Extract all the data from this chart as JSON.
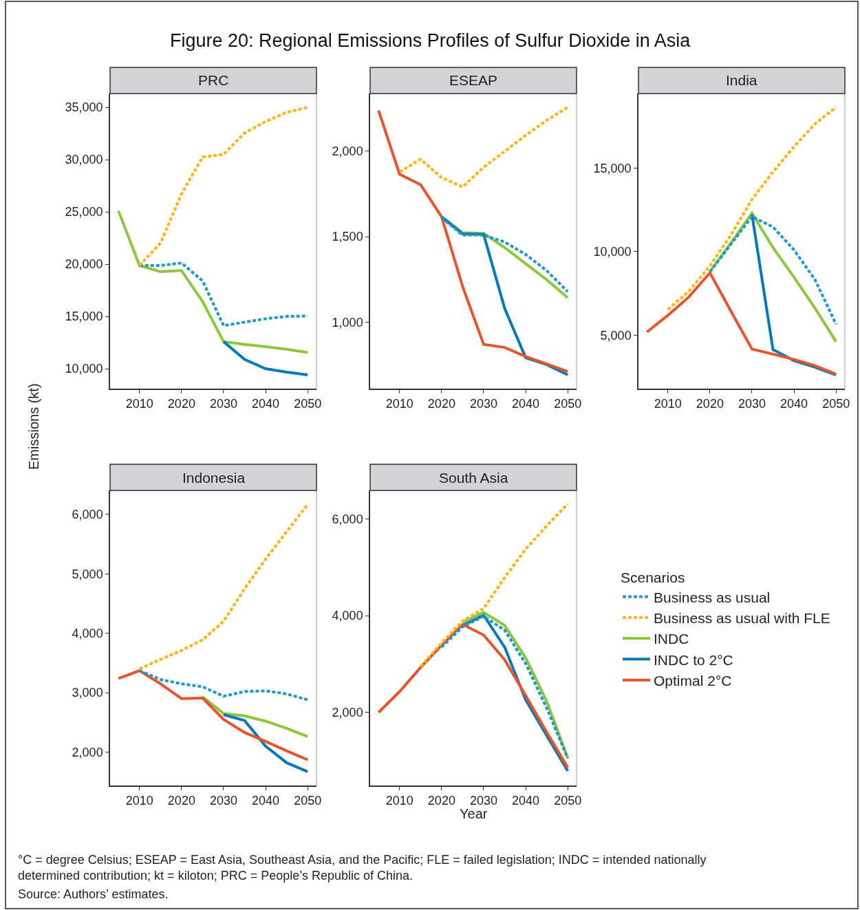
{
  "chart_data": [
    {
      "type": "line",
      "title": "Figure 20: Regional Emissions Profiles of Sulfur Dioxide in Asia",
      "subtitle": "PRC",
      "ylabel": "Emissions (kt)",
      "legend_title": "Scenarios",
      "legend": "right",
      "x": [
        2005,
        2010,
        2015,
        2020,
        2025,
        2030,
        2035,
        2040,
        2045,
        2050
      ],
      "xlim": [
        2003,
        2052.1
      ],
      "xticks": [
        2010,
        2020,
        2030,
        2040,
        2050
      ],
      "ylim": [
        8093,
        36316
      ],
      "yticks": [
        {
          "value": 10000,
          "label": "10,000"
        },
        {
          "value": 15000,
          "label": "15,000"
        },
        {
          "value": 20000,
          "label": "20,000"
        },
        {
          "value": 25000,
          "label": "25,000"
        },
        {
          "value": 30000,
          "label": "30,000"
        },
        {
          "value": 35000,
          "label": "35,000"
        }
      ],
      "grid": false,
      "series": [
        {
          "name": "Business as usual",
          "color": "#2196cf",
          "line_style": "dotted",
          "values": [
            null,
            19870,
            19870,
            20110,
            18400,
            14120,
            14450,
            14780,
            15000,
            15040
          ]
        },
        {
          "name": "Business as usual with FLE",
          "color": "#fdb515",
          "line_style": "dotted",
          "values": [
            null,
            19870,
            22020,
            26730,
            30240,
            30500,
            32540,
            33640,
            34520,
            35000
          ]
        },
        {
          "name": "INDC",
          "color": "#8dc63f",
          "line_style": "solid",
          "values": [
            25090,
            19870,
            19280,
            19390,
            16430,
            12590,
            12320,
            12100,
            11860,
            11540
          ]
        },
        {
          "name": "INDC to 2°C",
          "color": "#0079b8",
          "line_style": "solid",
          "values": [
            null,
            null,
            null,
            null,
            null,
            12590,
            10880,
            10000,
            9670,
            9410
          ]
        }
      ]
    },
    {
      "type": "line",
      "subtitle": "ESEAP",
      "x": [
        2005,
        2010,
        2015,
        2020,
        2025,
        2030,
        2035,
        2040,
        2045,
        2050
      ],
      "xlim": [
        2003,
        2052.1
      ],
      "xticks": [
        2010,
        2020,
        2030,
        2040,
        2050
      ],
      "ylim": [
        614,
        2334
      ],
      "yticks": [
        {
          "value": 1000,
          "label": "1,000"
        },
        {
          "value": 1500,
          "label": "1,500"
        },
        {
          "value": 2000,
          "label": "2,000"
        }
      ],
      "grid": false,
      "series": [
        {
          "name": "Business as usual",
          "color": "#2196cf",
          "line_style": "dotted",
          "values": [
            null,
            null,
            null,
            1610,
            1509,
            1509,
            1469,
            1396,
            1302,
            1179
          ]
        },
        {
          "name": "Business as usual with FLE",
          "color": "#fdb515",
          "line_style": "dotted",
          "values": [
            null,
            1877,
            1951,
            1844,
            1790,
            1904,
            1997,
            2091,
            2178,
            2254
          ]
        },
        {
          "name": "INDC",
          "color": "#8dc63f",
          "line_style": "solid",
          "values": [
            null,
            null,
            null,
            1616,
            1523,
            1519,
            1436,
            1342,
            1249,
            1144
          ]
        },
        {
          "name": "INDC to 2°C",
          "color": "#0079b8",
          "line_style": "solid",
          "values": [
            null,
            null,
            null,
            1616,
            1516,
            1513,
            1082,
            794,
            754,
            694
          ]
        },
        {
          "name": "Optimal 2°C",
          "color": "#e8532b",
          "line_style": "solid",
          "values": [
            2235,
            1864,
            1803,
            1616,
            1209,
            872,
            854,
            801,
            758,
            714
          ]
        }
      ]
    },
    {
      "type": "line",
      "subtitle": "India",
      "x": [
        2005,
        2010,
        2015,
        2020,
        2025,
        2030,
        2035,
        2040,
        2045,
        2050
      ],
      "xlim": [
        2003,
        2052.1
      ],
      "xticks": [
        2010,
        2020,
        2030,
        2040,
        2050
      ],
      "ylim": [
        1820,
        19450
      ],
      "yticks": [
        {
          "value": 5000,
          "label": "5,000"
        },
        {
          "value": 10000,
          "label": "10,000"
        },
        {
          "value": 15000,
          "label": "15,000"
        }
      ],
      "grid": false,
      "series": [
        {
          "name": "Business as usual",
          "color": "#2196cf",
          "line_style": "dotted",
          "values": [
            null,
            null,
            null,
            8800,
            10450,
            12100,
            11480,
            10110,
            8330,
            5660
          ]
        },
        {
          "name": "Business as usual with FLE",
          "color": "#fdb515",
          "line_style": "dotted",
          "values": [
            null,
            6550,
            7640,
            9150,
            11000,
            13120,
            14770,
            16270,
            17640,
            18630
          ]
        },
        {
          "name": "INDC",
          "color": "#8dc63f",
          "line_style": "solid",
          "values": [
            null,
            null,
            null,
            8810,
            10520,
            12300,
            10250,
            8470,
            6620,
            4630
          ]
        },
        {
          "name": "INDC to 2°C",
          "color": "#0079b8",
          "line_style": "solid",
          "values": [
            null,
            null,
            null,
            null,
            null,
            12230,
            4150,
            3490,
            3100,
            2640
          ]
        },
        {
          "name": "Optimal 2°C",
          "color": "#e8532b",
          "line_style": "solid",
          "values": [
            5200,
            6200,
            7300,
            8740,
            6440,
            4180,
            3880,
            3560,
            3190,
            2690
          ]
        }
      ]
    },
    {
      "type": "line",
      "subtitle": "Indonesia",
      "x": [
        2005,
        2010,
        2015,
        2020,
        2025,
        2030,
        2035,
        2040,
        2045,
        2050
      ],
      "xlim": [
        2003,
        2052.1
      ],
      "xticks": [
        2010,
        2020,
        2030,
        2040,
        2050
      ],
      "ylim": [
        1437,
        6405
      ],
      "yticks": [
        {
          "value": 2000,
          "label": "2,000"
        },
        {
          "value": 3000,
          "label": "3,000"
        },
        {
          "value": 4000,
          "label": "4,000"
        },
        {
          "value": 5000,
          "label": "5,000"
        },
        {
          "value": 6000,
          "label": "6,000"
        }
      ],
      "grid": false,
      "series": [
        {
          "name": "Business as usual",
          "color": "#2196cf",
          "line_style": "dotted",
          "values": [
            null,
            3370,
            3220,
            3150,
            3100,
            2940,
            3020,
            3030,
            2980,
            2880
          ]
        },
        {
          "name": "Business as usual with FLE",
          "color": "#fdb515",
          "line_style": "dotted",
          "values": [
            null,
            3400,
            3560,
            3710,
            3890,
            4200,
            4750,
            5250,
            5710,
            6170
          ]
        },
        {
          "name": "INDC",
          "color": "#8dc63f",
          "line_style": "solid",
          "values": [
            null,
            null,
            null,
            null,
            2930,
            2650,
            2610,
            2520,
            2400,
            2260
          ]
        },
        {
          "name": "INDC to 2°C",
          "color": "#0079b8",
          "line_style": "solid",
          "values": [
            null,
            null,
            null,
            null,
            null,
            2630,
            2530,
            2100,
            1820,
            1670
          ]
        },
        {
          "name": "Optimal 2°C",
          "color": "#e8532b",
          "line_style": "solid",
          "values": [
            3240,
            3370,
            3150,
            2900,
            2910,
            2550,
            2330,
            2180,
            2020,
            1870
          ]
        }
      ]
    },
    {
      "type": "line",
      "subtitle": "South Asia",
      "xlabel": "Year",
      "x": [
        2005,
        2010,
        2015,
        2020,
        2025,
        2030,
        2035,
        2040,
        2045,
        2050
      ],
      "xlim": [
        2003,
        2052.1
      ],
      "xticks": [
        2010,
        2020,
        2030,
        2040,
        2050
      ],
      "ylim": [
        488,
        6592
      ],
      "yticks": [
        {
          "value": 2000,
          "label": "2,000"
        },
        {
          "value": 4000,
          "label": "4,000"
        },
        {
          "value": 6000,
          "label": "6,000"
        }
      ],
      "grid": false,
      "annotations": [
        "°C = degree Celsius; ESEAP = East Asia, Southeast Asia, and the Pacific; FLE = failed legislation; INDC = intended nationally determined contribution; kt = kiloton; PRC = People’s Republic of China.",
        "Source: Authors’ estimates."
      ],
      "series": [
        {
          "name": "Business as usual",
          "color": "#2196cf",
          "line_style": "dotted",
          "values": [
            null,
            null,
            null,
            3350,
            3770,
            3990,
            3700,
            3010,
            2090,
            1050
          ]
        },
        {
          "name": "Business as usual with FLE",
          "color": "#fdb515",
          "line_style": "dotted",
          "values": [
            null,
            null,
            2950,
            3440,
            3890,
            4150,
            4790,
            5380,
            5860,
            6310
          ]
        },
        {
          "name": "INDC",
          "color": "#8dc63f",
          "line_style": "solid",
          "values": [
            null,
            null,
            null,
            null,
            3870,
            4070,
            3800,
            3130,
            2230,
            1060
          ]
        },
        {
          "name": "INDC to 2°C",
          "color": "#0079b8",
          "line_style": "solid",
          "values": [
            null,
            null,
            null,
            null,
            3800,
            4010,
            3350,
            2260,
            1520,
            790
          ]
        },
        {
          "name": "Optimal 2°C",
          "color": "#e8532b",
          "line_style": "solid",
          "values": [
            2000,
            2430,
            2930,
            3390,
            3820,
            3600,
            3090,
            2350,
            1590,
            860
          ]
        }
      ]
    }
  ]
}
